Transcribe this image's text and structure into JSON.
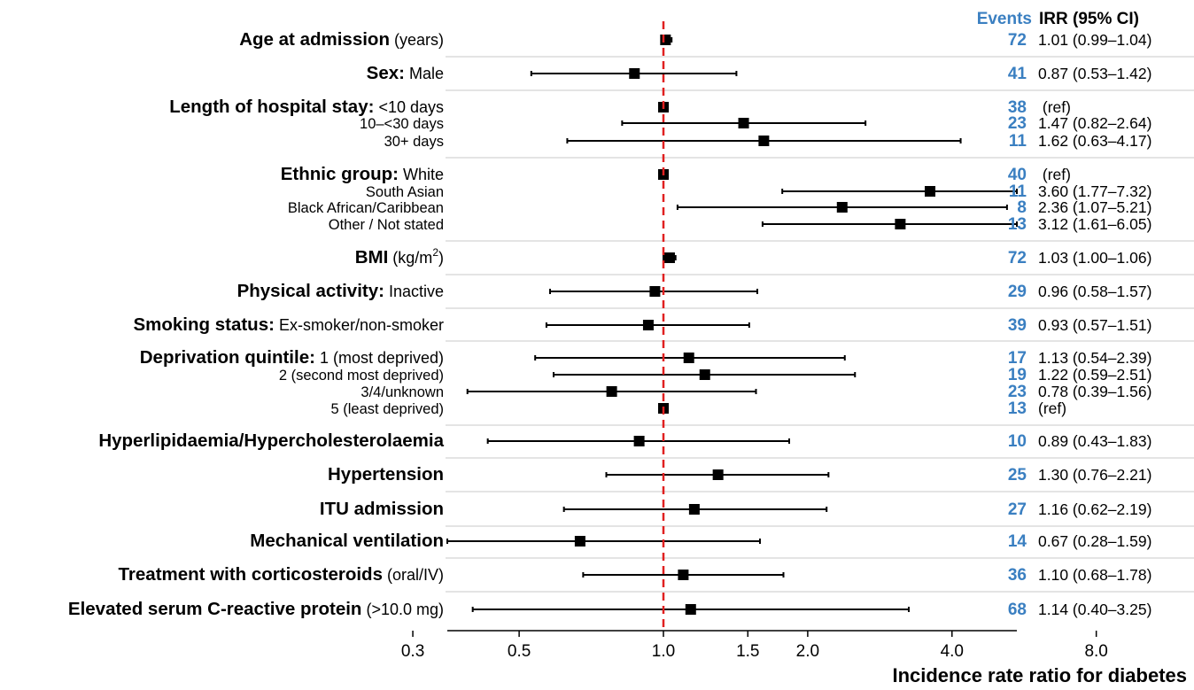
{
  "chart_data": {
    "type": "forest",
    "xlabel": "Incidence rate ratio for diabetes",
    "x_scale": "log",
    "xlim": [
      0.28,
      8.0
    ],
    "x_ticks": [
      0.3,
      0.5,
      1.0,
      1.5,
      2.0,
      4.0,
      8.0
    ],
    "x_tick_labels": [
      "0.3",
      "0.5",
      "1.0",
      "1.5",
      "2.0",
      "4.0",
      "8.0"
    ],
    "reference_line": 1.0,
    "colors": {
      "events": "#3a7fc1",
      "reference_line": "#e02020",
      "marker": "#000000",
      "separator": "#c8c8c8"
    },
    "column_headers": {
      "events": "Events",
      "irr": "IRR (95% CI)"
    },
    "groups": [
      {
        "rows": [
          {
            "label": "Age at admission",
            "suffix": " (years)",
            "bold": true,
            "events": "72",
            "irr_text": "1.01 (0.99–1.04)",
            "est": 1.01,
            "lo": 0.99,
            "hi": 1.04
          }
        ]
      },
      {
        "rows": [
          {
            "label": "Sex:",
            "suffix": " Male",
            "bold": true,
            "events": "41",
            "irr_text": "0.87 (0.53–1.42)",
            "est": 0.87,
            "lo": 0.53,
            "hi": 1.42
          }
        ]
      },
      {
        "rows": [
          {
            "label": "Length of hospital stay:",
            "suffix": " <10 days",
            "bold": true,
            "events": "38",
            "irr_text": " (ref)",
            "est": 1.0,
            "lo": null,
            "hi": null
          },
          {
            "label": "",
            "suffix": "10–<30 days",
            "bold": false,
            "events": "23",
            "irr_text": "1.47 (0.82–2.64)",
            "est": 1.47,
            "lo": 0.82,
            "hi": 2.64
          },
          {
            "label": "",
            "suffix": "30+ days",
            "bold": false,
            "events": "11",
            "irr_text": "1.62 (0.63–4.17)",
            "est": 1.62,
            "lo": 0.63,
            "hi": 4.17
          }
        ]
      },
      {
        "rows": [
          {
            "label": "Ethnic group:",
            "suffix": " White",
            "bold": true,
            "events": "40",
            "irr_text": " (ref)",
            "est": 1.0,
            "lo": null,
            "hi": null
          },
          {
            "label": "",
            "suffix": "South Asian",
            "bold": false,
            "events": "11",
            "irr_text": "3.60 (1.77–7.32)",
            "est": 3.6,
            "lo": 1.77,
            "hi": 7.32
          },
          {
            "label": "",
            "suffix": "Black African/Caribbean",
            "bold": false,
            "events": "8",
            "irr_text": "2.36 (1.07–5.21)",
            "est": 2.36,
            "lo": 1.07,
            "hi": 5.21
          },
          {
            "label": "",
            "suffix": "Other / Not stated",
            "bold": false,
            "events": "13",
            "irr_text": "3.12 (1.61–6.05)",
            "est": 3.12,
            "lo": 1.61,
            "hi": 6.05
          }
        ]
      },
      {
        "rows": [
          {
            "label": "BMI",
            "suffix": " (kg/m",
            "sup": "2",
            "suffix_end": ")",
            "bold": true,
            "events": "72",
            "irr_text": "1.03 (1.00–1.06)",
            "est": 1.03,
            "lo": 1.0,
            "hi": 1.06
          }
        ]
      },
      {
        "rows": [
          {
            "label": "Physical activity:",
            "suffix": " Inactive",
            "bold": true,
            "events": "29",
            "irr_text": "0.96 (0.58–1.57)",
            "est": 0.96,
            "lo": 0.58,
            "hi": 1.57
          }
        ]
      },
      {
        "rows": [
          {
            "label": "Smoking status:",
            "suffix": " Ex-smoker/non-smoker",
            "bold": true,
            "events": "39",
            "irr_text": "0.93 (0.57–1.51)",
            "est": 0.93,
            "lo": 0.57,
            "hi": 1.51
          }
        ]
      },
      {
        "rows": [
          {
            "label": "Deprivation quintile:",
            "suffix": " 1 (most deprived)",
            "bold": true,
            "events": "17",
            "irr_text": "1.13 (0.54–2.39)",
            "est": 1.13,
            "lo": 0.54,
            "hi": 2.39
          },
          {
            "label": "",
            "suffix": "2 (second most deprived)",
            "bold": false,
            "events": "19",
            "irr_text": "1.22 (0.59–2.51)",
            "est": 1.22,
            "lo": 0.59,
            "hi": 2.51
          },
          {
            "label": "",
            "suffix": "3/4/unknown",
            "bold": false,
            "events": "23",
            "irr_text": "0.78 (0.39–1.56)",
            "est": 0.78,
            "lo": 0.39,
            "hi": 1.56
          },
          {
            "label": "",
            "suffix": "5 (least deprived)",
            "bold": false,
            "events": "13",
            "irr_text": "(ref)",
            "est": 1.0,
            "lo": null,
            "hi": null
          }
        ]
      },
      {
        "rows": [
          {
            "label": "Hyperlipidaemia/Hypercholesterolaemia",
            "suffix": "",
            "bold": true,
            "events": "10",
            "irr_text": "0.89 (0.43–1.83)",
            "est": 0.89,
            "lo": 0.43,
            "hi": 1.83
          }
        ]
      },
      {
        "rows": [
          {
            "label": "Hypertension",
            "suffix": "",
            "bold": true,
            "events": "25",
            "irr_text": "1.30 (0.76–2.21)",
            "est": 1.3,
            "lo": 0.76,
            "hi": 2.21
          }
        ]
      },
      {
        "rows": [
          {
            "label": "ITU admission",
            "suffix": "",
            "bold": true,
            "events": "27",
            "irr_text": "1.16 (0.62–2.19)",
            "est": 1.16,
            "lo": 0.62,
            "hi": 2.19
          }
        ]
      },
      {
        "rows": [
          {
            "label": "Mechanical ventilation",
            "suffix": "",
            "bold": true,
            "events": "14",
            "irr_text": "0.67 (0.28–1.59)",
            "est": 0.67,
            "lo": 0.28,
            "hi": 1.59
          }
        ]
      },
      {
        "rows": [
          {
            "label": "Treatment with corticosteroids",
            "suffix": " (oral/IV)",
            "bold": true,
            "events": "36",
            "irr_text": "1.10 (0.68–1.78)",
            "est": 1.1,
            "lo": 0.68,
            "hi": 1.78
          }
        ]
      },
      {
        "rows": [
          {
            "label": "Elevated serum C-reactive protein",
            "suffix": " (>10.0 mg)",
            "bold": true,
            "events": "68",
            "irr_text": "1.14 (0.40–3.25)",
            "est": 1.14,
            "lo": 0.4,
            "hi": 3.25
          }
        ]
      }
    ]
  }
}
